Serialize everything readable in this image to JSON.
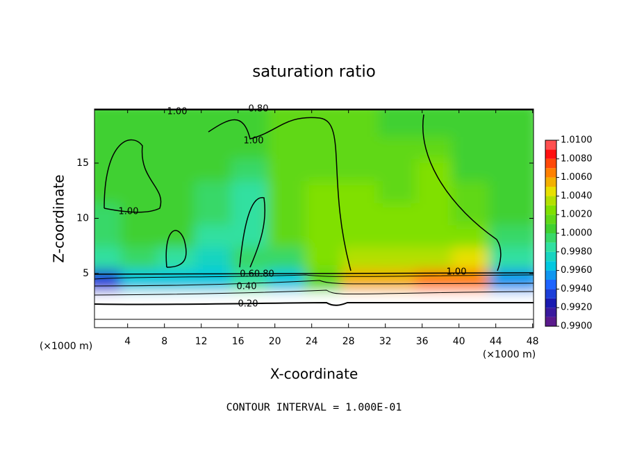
{
  "chart_data": {
    "type": "heatmap",
    "title": "saturation ratio",
    "x_label": "X-coordinate",
    "y_label": "Z-coordinate",
    "x_unit_label": "(×1000 m)",
    "y_unit_label": "(×1000 m)",
    "footnote": "CONTOUR INTERVAL = 1.000E-01",
    "contour_labels": [
      "1.00",
      "0.80",
      "1.00",
      "1.00",
      "0.60.80",
      "0.40",
      "0.20",
      "1.00"
    ],
    "xlim": [
      0.4,
      48.1
    ],
    "ylim": [
      0.1,
      19.9
    ],
    "xticks": [
      4,
      8,
      12,
      16,
      20,
      24,
      28,
      32,
      36,
      40,
      44,
      48
    ],
    "yticks": [
      5,
      10,
      15
    ],
    "x": [
      2,
      6,
      10,
      14,
      18,
      22,
      26,
      30,
      34,
      38,
      42,
      46
    ],
    "y": [
      1,
      3,
      5,
      7,
      9,
      11,
      13,
      15,
      17,
      19
    ],
    "values": [
      [
        0.2,
        0.2,
        0.2,
        0.2,
        0.2,
        0.2,
        0.2,
        0.2,
        0.2,
        0.2,
        0.2,
        0.2
      ],
      [
        0.6,
        0.6,
        0.6,
        0.6,
        0.6,
        0.6,
        0.6,
        0.6,
        0.6,
        0.6,
        0.6,
        0.6
      ],
      [
        0.993,
        0.996,
        0.996,
        0.996,
        0.998,
        0.996,
        1.001,
        1.005,
        1.005,
        1.006,
        1.006,
        0.995
      ],
      [
        0.998,
        0.999,
        0.998,
        0.997,
        0.999,
        0.999,
        1.002,
        1.003,
        1.003,
        1.003,
        1.004,
        0.998
      ],
      [
        0.999,
        1.0,
        1.0,
        0.998,
        0.998,
        1.001,
        1.002,
        1.002,
        1.002,
        1.002,
        1.002,
        0.999
      ],
      [
        0.999,
        1.0,
        1.0,
        0.999,
        0.998,
        1.001,
        1.002,
        1.002,
        1.002,
        1.002,
        1.001,
        1.0
      ],
      [
        1.0,
        1.0,
        1.0,
        0.999,
        0.998,
        1.001,
        1.002,
        1.002,
        1.001,
        1.002,
        1.001,
        1.0
      ],
      [
        1.0,
        1.0,
        1.0,
        1.0,
        0.999,
        1.001,
        1.001,
        1.001,
        1.001,
        1.002,
        1.0,
        1.0
      ],
      [
        1.0,
        1.0,
        1.0,
        1.0,
        1.0,
        1.001,
        1.001,
        1.001,
        1.001,
        1.001,
        1.0,
        1.0
      ],
      [
        1.0,
        1.0,
        1.0,
        1.0,
        1.0,
        1.001,
        1.001,
        1.001,
        1.0,
        1.0,
        1.0,
        1.0
      ]
    ],
    "colorbar": {
      "ticks": [
        {
          "value": 0.99,
          "label": "0.9900"
        },
        {
          "value": 0.992,
          "label": "0.9920"
        },
        {
          "value": 0.994,
          "label": "0.9940"
        },
        {
          "value": 0.996,
          "label": "0.9960"
        },
        {
          "value": 0.998,
          "label": "0.9980"
        },
        {
          "value": 1.0,
          "label": "1.0000"
        },
        {
          "value": 1.002,
          "label": "1.0020"
        },
        {
          "value": 1.004,
          "label": "1.0040"
        },
        {
          "value": 1.006,
          "label": "1.0060"
        },
        {
          "value": 1.008,
          "label": "1.0080"
        },
        {
          "value": 1.01,
          "label": "1.0100"
        }
      ],
      "colors": [
        "#5a1a8c",
        "#1a1ab0",
        "#1e64ff",
        "#00c8e0",
        "#30e0a0",
        "#40d030",
        "#80e000",
        "#e8e000",
        "#ff8000",
        "#ff1010",
        "#ff9090"
      ]
    }
  }
}
